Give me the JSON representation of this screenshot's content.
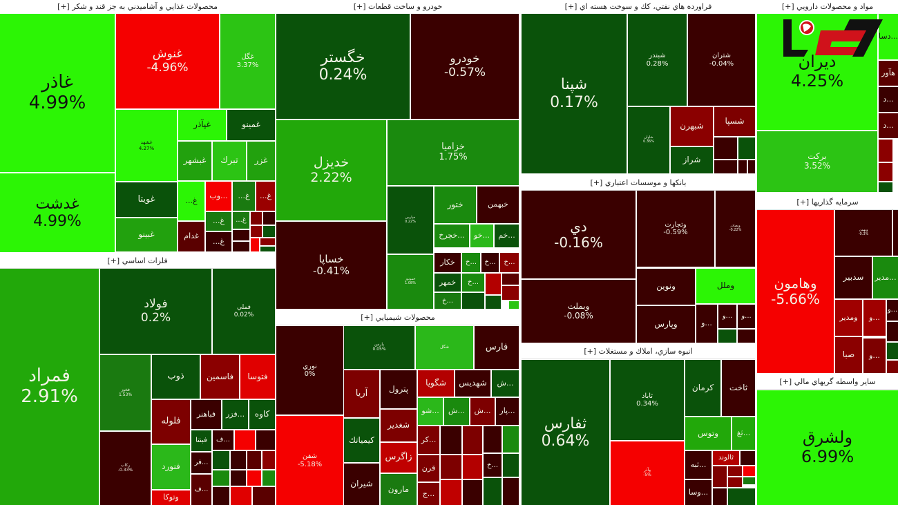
{
  "colors": {
    "bright_green": "#2cf505",
    "green": "#22a80a",
    "mid_green": "#1a8a0e",
    "dark_green": "#0a520a",
    "bright_red": "#f50000",
    "red": "#b30000",
    "mid_red": "#7d0000",
    "dark_red": "#3a0000"
  },
  "logo": {
    "text": "رکنا"
  },
  "sectors": [
    {
      "title": "محصولات غذايي و آشاميدني به جز قند و شكر [+]",
      "tiles": [
        {
          "symbol": "غاذر",
          "change": "4.99%",
          "color": "#2cf505"
        },
        {
          "symbol": "غدشت",
          "change": "4.99%",
          "color": "#2cf505"
        },
        {
          "symbol": "غنوش",
          "change": "-4.96%",
          "color": "#f50000"
        },
        {
          "symbol": "غگل",
          "change": "3.37%",
          "color": "#2cc414"
        },
        {
          "symbol": "غشهد",
          "change": "4.27%",
          "color": "#2cf505"
        },
        {
          "symbol": "غپآذر",
          "change": "",
          "color": "#2cf505"
        },
        {
          "symbol": "غمينو",
          "change": "",
          "color": "#0a520a"
        },
        {
          "symbol": "غبشهر",
          "change": "",
          "color": "#22a10e"
        },
        {
          "symbol": "تبرك",
          "change": "",
          "color": "#2cc414"
        },
        {
          "symbol": "غزر",
          "change": "",
          "color": "#22a10e"
        },
        {
          "symbol": "غويتا",
          "change": "",
          "color": "#0a520a"
        },
        {
          "symbol": "غبينو",
          "change": "",
          "color": "#22a10e"
        },
        {
          "symbol": "غ...",
          "change": "",
          "color": "#2cf505"
        },
        {
          "symbol": "غدام",
          "change": "",
          "color": "#5a0000"
        },
        {
          "symbol": "...وب",
          "change": "",
          "color": "#f50000"
        },
        {
          "symbol": "غ...",
          "change": "",
          "color": "#1a7a10"
        },
        {
          "symbol": "غ...",
          "change": "",
          "color": "#9a0000"
        },
        {
          "symbol": "غ...",
          "change": "",
          "color": "#1a7a10"
        },
        {
          "symbol": "غ...",
          "change": "",
          "color": "#1a7a10"
        },
        {
          "symbol": "غ...",
          "change": "",
          "color": "#3a0000"
        },
        {
          "symbol": "",
          "change": "",
          "color": "#7d0000"
        },
        {
          "symbol": "",
          "change": "",
          "color": "#3a0000"
        },
        {
          "symbol": "",
          "change": "",
          "color": "#8b0000"
        },
        {
          "symbol": "",
          "change": "",
          "color": "#0a520a"
        },
        {
          "symbol": "",
          "change": "",
          "color": "#f50000"
        },
        {
          "symbol": "",
          "change": "",
          "color": "#8b0000"
        },
        {
          "symbol": "",
          "change": "",
          "color": "#0a520a"
        },
        {
          "symbol": "",
          "change": "",
          "color": "#3a0000"
        },
        {
          "symbol": "",
          "change": "",
          "color": "#3a0000"
        }
      ]
    },
    {
      "title": "فلزات اساسي [+]",
      "tiles": [
        {
          "symbol": "فمراد",
          "change": "2.91%",
          "color": "#22a80a"
        },
        {
          "symbol": "فولاد",
          "change": "0.2%",
          "color": "#0a520a"
        },
        {
          "symbol": "فملي",
          "change": "0.02%",
          "color": "#0a520a"
        },
        {
          "symbol": "فخوز",
          "change": "1.53%",
          "color": "#1a7a10"
        },
        {
          "symbol": "ذوب",
          "change": "",
          "color": "#0a520a"
        },
        {
          "symbol": "فاسمين",
          "change": "",
          "color": "#8b0000"
        },
        {
          "symbol": "فتوسا",
          "change": "",
          "color": "#e00000"
        },
        {
          "symbol": "فلوله",
          "change": "",
          "color": "#7d0000"
        },
        {
          "symbol": "فباهنر",
          "change": "",
          "color": "#3a0000"
        },
        {
          "symbol": "...فزر",
          "change": "",
          "color": "#0a520a"
        },
        {
          "symbol": "كاوه",
          "change": "",
          "color": "#0a520a"
        },
        {
          "symbol": "فنورد",
          "change": "",
          "color": "#2bb81a"
        },
        {
          "symbol": "وتوكا",
          "change": "",
          "color": "#e00000"
        },
        {
          "symbol": "فبنتا",
          "change": "",
          "color": "#0a520a"
        },
        {
          "symbol": "...فر",
          "change": "",
          "color": "#3a0000"
        },
        {
          "symbol": "...ف",
          "change": "",
          "color": "#5a0000"
        },
        {
          "symbol": "ركاب",
          "change": "-0.33%",
          "color": "#3a0000"
        },
        {
          "symbol": "...ف",
          "change": "",
          "color": "#3a0000"
        },
        {
          "symbol": "",
          "change": "",
          "color": "#f50000"
        },
        {
          "symbol": "",
          "change": "",
          "color": "#3a0000"
        },
        {
          "symbol": "",
          "change": "",
          "color": "#0a520a"
        },
        {
          "symbol": "",
          "change": "",
          "color": "#3a0000"
        },
        {
          "symbol": "",
          "change": "",
          "color": "#5a0000"
        },
        {
          "symbol": "",
          "change": "",
          "color": "#8b0000"
        },
        {
          "symbol": "",
          "change": "",
          "color": "#1a8a0e"
        },
        {
          "symbol": "",
          "change": "",
          "color": "#3a0000"
        },
        {
          "symbol": "",
          "change": "",
          "color": "#f50000"
        },
        {
          "symbol": "",
          "change": "",
          "color": "#1a8a0e"
        },
        {
          "symbol": "",
          "change": "",
          "color": "#3a0000"
        },
        {
          "symbol": "",
          "change": "",
          "color": "#e00000"
        },
        {
          "symbol": "",
          "change": "",
          "color": "#5a0000"
        }
      ]
    },
    {
      "title": "خودرو و ساخت قطعات [+]",
      "tiles": [
        {
          "symbol": "خگستر",
          "change": "0.24%",
          "color": "#0a520a"
        },
        {
          "symbol": "خودرو",
          "change": "-0.57%",
          "color": "#3a0000"
        },
        {
          "symbol": "خديزل",
          "change": "2.22%",
          "color": "#22a80a"
        },
        {
          "symbol": "خزاميا",
          "change": "1.75%",
          "color": "#1a8a0e"
        },
        {
          "symbol": "خساپا",
          "change": "-0.41%",
          "color": "#3a0000"
        },
        {
          "symbol": "خپارس",
          "change": "0.22%",
          "color": "#0a520a"
        },
        {
          "symbol": "ختور",
          "change": "",
          "color": "#1a8a0e"
        },
        {
          "symbol": "خبهمن",
          "change": "",
          "color": "#3a0000"
        },
        {
          "symbol": "...خچرخ",
          "change": "",
          "color": "#1a8a0e"
        },
        {
          "symbol": "...خو",
          "change": "",
          "color": "#2bb81a"
        },
        {
          "symbol": "...خم",
          "change": "",
          "color": "#0a520a"
        },
        {
          "symbol": "خموتور",
          "change": "1.08%",
          "color": "#1a8a0e"
        },
        {
          "symbol": "خكار",
          "change": "",
          "color": "#3a0000"
        },
        {
          "symbol": "...خ",
          "change": "",
          "color": "#1a8a0e"
        },
        {
          "symbol": "...خ",
          "change": "",
          "color": "#3a0000"
        },
        {
          "symbol": "...خ",
          "change": "",
          "color": "#8b0000"
        },
        {
          "symbol": "خمهر",
          "change": "",
          "color": "#0a520a"
        },
        {
          "symbol": "...خ",
          "change": "",
          "color": "#1a8a0e"
        },
        {
          "symbol": "",
          "change": "",
          "color": "#b30000"
        },
        {
          "symbol": "",
          "change": "",
          "color": "#5a0000"
        },
        {
          "symbol": "...خ",
          "change": "",
          "color": "#1a7a10"
        },
        {
          "symbol": "",
          "change": "",
          "color": "#0a520a"
        },
        {
          "symbol": "",
          "change": "",
          "color": "#0a520a"
        },
        {
          "symbol": "",
          "change": "",
          "color": "#8b0000"
        },
        {
          "symbol": "",
          "change": "",
          "color": "#2cc414"
        }
      ]
    },
    {
      "title": "محصولات شيميايي [+]",
      "tiles": [
        {
          "symbol": "نوري",
          "change": "0%",
          "color": "#3a0000"
        },
        {
          "symbol": "شفن",
          "change": "-5.18%",
          "color": "#f50000"
        },
        {
          "symbol": "پارس",
          "change": "0.05%",
          "color": "#0a520a"
        },
        {
          "symbol": "شگل",
          "change": "",
          "color": "#2bb81a"
        },
        {
          "symbol": "فارس",
          "change": "",
          "color": "#3a0000"
        },
        {
          "symbol": "آريا",
          "change": "",
          "color": "#7d0000"
        },
        {
          "symbol": "كيمياتك",
          "change": "",
          "color": "#0a520a"
        },
        {
          "symbol": "شيران",
          "change": "",
          "color": "#3a0000"
        },
        {
          "symbol": "پترول",
          "change": "",
          "color": "#3a0000"
        },
        {
          "symbol": "شغدير",
          "change": "",
          "color": "#7d0000"
        },
        {
          "symbol": "زاگرس",
          "change": "",
          "color": "#c00000"
        },
        {
          "symbol": "مارون",
          "change": "",
          "color": "#1a7a10"
        },
        {
          "symbol": "شگويا",
          "change": "",
          "color": "#b30000"
        },
        {
          "symbol": "شهديس",
          "change": "",
          "color": "#3a0000"
        },
        {
          "symbol": "...ش",
          "change": "",
          "color": "#0a520a"
        },
        {
          "symbol": "...شو",
          "change": "",
          "color": "#2bb81a"
        },
        {
          "symbol": "...ش",
          "change": "",
          "color": "#1a8a0e"
        },
        {
          "symbol": "...ش",
          "change": "",
          "color": "#7d0000"
        },
        {
          "symbol": "...پار",
          "change": "",
          "color": "#3a0000"
        },
        {
          "symbol": "...كر",
          "change": "",
          "color": "#7d0000"
        },
        {
          "symbol": "قرن",
          "change": "",
          "color": "#7d0000"
        },
        {
          "symbol": "...ج",
          "change": "",
          "color": "#7d0000"
        },
        {
          "symbol": "",
          "change": "",
          "color": "#3a0000"
        },
        {
          "symbol": "",
          "change": "",
          "color": "#7d0000"
        },
        {
          "symbol": "",
          "change": "",
          "color": "#3a0000"
        },
        {
          "symbol": "",
          "change": "",
          "color": "#1a8a0e"
        },
        {
          "symbol": "",
          "change": "",
          "color": "#7d0000"
        },
        {
          "symbol": "",
          "change": "",
          "color": "#b30000"
        },
        {
          "symbol": "...خ",
          "change": "",
          "color": "#3a0000"
        },
        {
          "symbol": "",
          "change": "",
          "color": "#0a520a"
        },
        {
          "symbol": "",
          "change": "",
          "color": "#c00000"
        },
        {
          "symbol": "",
          "change": "",
          "color": "#3a0000"
        },
        {
          "symbol": "",
          "change": "",
          "color": "#0a520a"
        },
        {
          "symbol": "",
          "change": "",
          "color": "#3a0000"
        }
      ]
    },
    {
      "title": "فراورده هاي نفتي، كك و سوخت هسته اي [+]",
      "tiles": [
        {
          "symbol": "شپنا",
          "change": "0.17%",
          "color": "#0a520a"
        },
        {
          "symbol": "شبندر",
          "change": "0.28%",
          "color": "#0a520a"
        },
        {
          "symbol": "شتران",
          "change": "-0.04%",
          "color": "#3a0000"
        },
        {
          "symbol": "شاوان",
          "change": "0.36%",
          "color": "#0a520a"
        },
        {
          "symbol": "شبهرن",
          "change": "",
          "color": "#8b0000"
        },
        {
          "symbol": "شسپا",
          "change": "",
          "color": "#7d0000"
        },
        {
          "symbol": "شراز",
          "change": "",
          "color": "#0a520a"
        },
        {
          "symbol": "",
          "change": "",
          "color": "#3a0000"
        },
        {
          "symbol": "",
          "change": "",
          "color": "#0a520a"
        },
        {
          "symbol": "",
          "change": "",
          "color": "#3a0000"
        },
        {
          "symbol": "",
          "change": "",
          "color": "#3a0000"
        },
        {
          "symbol": "",
          "change": "",
          "color": "#3a0000"
        }
      ]
    },
    {
      "title": "بانكها و موسسات اعتباري [+]",
      "tiles": [
        {
          "symbol": "دي",
          "change": "-0.16%",
          "color": "#3a0000"
        },
        {
          "symbol": "وبملت",
          "change": "-0.08%",
          "color": "#3a0000"
        },
        {
          "symbol": "وتجارت",
          "change": "-0.59%",
          "color": "#3a0000"
        },
        {
          "symbol": "وبصادر",
          "change": "-0.22%",
          "color": "#3a0000"
        },
        {
          "symbol": "ونوين",
          "change": "",
          "color": "#3a0000"
        },
        {
          "symbol": "وملل",
          "change": "",
          "color": "#2cf505"
        },
        {
          "symbol": "وپارس",
          "change": "",
          "color": "#3a0000"
        },
        {
          "symbol": "...و",
          "change": "",
          "color": "#3a0000"
        },
        {
          "symbol": "...و",
          "change": "",
          "color": "#3a0000"
        },
        {
          "symbol": "...و",
          "change": "",
          "color": "#3a0000"
        },
        {
          "symbol": "",
          "change": "",
          "color": "#0a520a"
        },
        {
          "symbol": "",
          "change": "",
          "color": "#3a0000"
        }
      ]
    },
    {
      "title": "انبوه سازي، املاك و مستغلات [+]",
      "tiles": [
        {
          "symbol": "ثفارس",
          "change": "0.64%",
          "color": "#0a520a"
        },
        {
          "symbol": "ثاباد",
          "change": "0.34%",
          "color": "#0a520a"
        },
        {
          "symbol": "وآذر",
          "change": "-5%",
          "color": "#f50000"
        },
        {
          "symbol": "كرمان",
          "change": "",
          "color": "#0a520a"
        },
        {
          "symbol": "ثاخت",
          "change": "",
          "color": "#3a0000"
        },
        {
          "symbol": "وتوس",
          "change": "",
          "color": "#22a80a"
        },
        {
          "symbol": "...ثغ",
          "change": "",
          "color": "#22a80a"
        },
        {
          "symbol": "...ثبه",
          "change": "",
          "color": "#3a0000"
        },
        {
          "symbol": "...وسا",
          "change": "",
          "color": "#3a0000"
        },
        {
          "symbol": "ثالوند",
          "change": "",
          "color": "#b30000"
        },
        {
          "symbol": "",
          "change": "",
          "color": "#3a0000"
        },
        {
          "symbol": "",
          "change": "",
          "color": "#7d0000"
        },
        {
          "symbol": "",
          "change": "",
          "color": "#8b0000"
        },
        {
          "symbol": "",
          "change": "",
          "color": "#f50000"
        },
        {
          "symbol": "",
          "change": "",
          "color": "#8b0000"
        },
        {
          "symbol": "",
          "change": "",
          "color": "#1a7a10"
        },
        {
          "symbol": "",
          "change": "",
          "color": "#3a0000"
        },
        {
          "symbol": "",
          "change": "",
          "color": "#0a520a"
        }
      ]
    },
    {
      "title": "مواد و محصولات دارويي [+]",
      "tiles": [
        {
          "symbol": "ديران",
          "change": "4.25%",
          "color": "#2cf505"
        },
        {
          "symbol": "بركت",
          "change": "3.52%",
          "color": "#2cc414"
        },
        {
          "symbol": "...دسا",
          "change": "",
          "color": "#2cf505"
        },
        {
          "symbol": "هآور",
          "change": "",
          "color": "#5a0000"
        },
        {
          "symbol": "...د",
          "change": "",
          "color": "#3a0000"
        },
        {
          "symbol": "...د",
          "change": "",
          "color": "#5a0000"
        },
        {
          "symbol": "",
          "change": "",
          "color": "#8b0000"
        },
        {
          "symbol": "",
          "change": "",
          "color": "#8b0000"
        },
        {
          "symbol": "",
          "change": "",
          "color": "#0a520a"
        }
      ]
    },
    {
      "title": "سرمايه گذاريها [+]",
      "tiles": [
        {
          "symbol": "وهامون",
          "change": "-5.66%",
          "color": "#f50000"
        },
        {
          "symbol": "وبهمن",
          "change": "-0.3%",
          "color": "#3a0000"
        },
        {
          "symbol": "",
          "change": "",
          "color": "#3a0000"
        },
        {
          "symbol": "سدبير",
          "change": "",
          "color": "#3a0000"
        },
        {
          "symbol": "...مدير",
          "change": "",
          "color": "#1a8a0e"
        },
        {
          "symbol": "ومدير",
          "change": "",
          "color": "#a00000"
        },
        {
          "symbol": "...و",
          "change": "",
          "color": "#a00000"
        },
        {
          "symbol": "صبا",
          "change": "",
          "color": "#8b0000"
        },
        {
          "symbol": "...و",
          "change": "",
          "color": "#7d0000"
        },
        {
          "symbol": "...و",
          "change": "",
          "color": "#3a0000"
        },
        {
          "symbol": "",
          "change": "",
          "color": "#3a0000"
        },
        {
          "symbol": "",
          "change": "",
          "color": "#0a520a"
        },
        {
          "symbol": "",
          "change": "",
          "color": "#7d0000"
        }
      ]
    },
    {
      "title": "ساير واسطه گريهاي مالي [+]",
      "tiles": [
        {
          "symbol": "ولشرق",
          "change": "6.99%",
          "color": "#2cf505"
        }
      ]
    }
  ]
}
